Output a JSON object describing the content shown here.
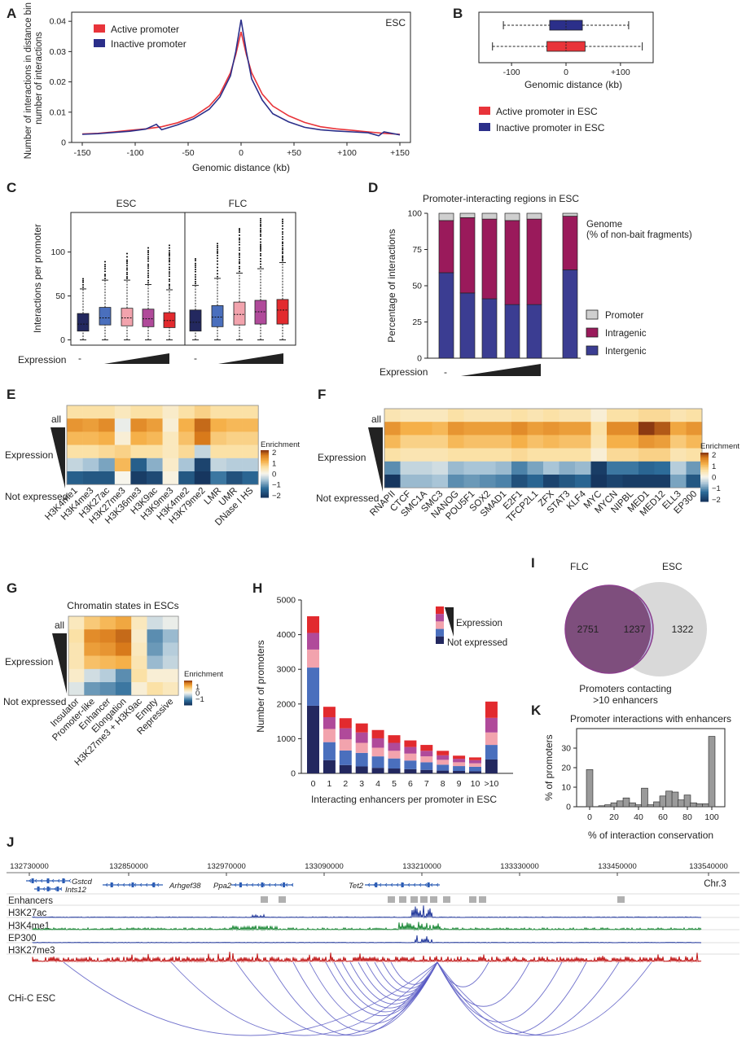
{
  "panel_labels": {
    "A": "A",
    "B": "B",
    "C": "C",
    "D": "D",
    "E": "E",
    "F": "F",
    "G": "G",
    "H": "H",
    "I": "I",
    "J": "J",
    "K": "K"
  },
  "colors": {
    "active": "#e8343a",
    "inactive": "#2b2f8a",
    "promoter": "#cfcfcf",
    "intragenic": "#9a1a5b",
    "intergenic": "#3b3d92"
  },
  "chart_data": [
    {
      "panel": "A",
      "type": "line",
      "corner_label": "ESC",
      "xlabel": "Genomic distance (kb)",
      "ylabel_lines": [
        "Number of interactions in distance bin /",
        "number of interactions"
      ],
      "x_ticks": [
        "-150",
        "-100",
        "-50",
        "0",
        "+50",
        "+100",
        "+150"
      ],
      "y_ticks": [
        "0",
        "0.01",
        "0.02",
        "0.03",
        "0.04"
      ],
      "xlim": [
        -160,
        160
      ],
      "ylim": [
        0,
        0.043
      ],
      "series": [
        {
          "name": "Active promoter",
          "color": "#e8343a",
          "x": [
            -150,
            -135,
            -120,
            -105,
            -90,
            -75,
            -60,
            -45,
            -30,
            -20,
            -10,
            -5,
            0,
            5,
            10,
            20,
            30,
            45,
            60,
            75,
            90,
            105,
            120,
            135,
            150
          ],
          "y": [
            0.0028,
            0.003,
            0.0035,
            0.004,
            0.0045,
            0.0052,
            0.0065,
            0.0085,
            0.012,
            0.016,
            0.023,
            0.029,
            0.0365,
            0.029,
            0.023,
            0.016,
            0.012,
            0.0088,
            0.0066,
            0.0052,
            0.0045,
            0.004,
            0.0035,
            0.003,
            0.0027
          ]
        },
        {
          "name": "Inactive promoter",
          "color": "#2b2f8a",
          "x": [
            -150,
            -135,
            -120,
            -105,
            -90,
            -80,
            -75,
            -60,
            -45,
            -30,
            -20,
            -10,
            -5,
            0,
            5,
            10,
            20,
            30,
            45,
            60,
            75,
            90,
            105,
            120,
            130,
            135,
            150
          ],
          "y": [
            0.0027,
            0.0029,
            0.0033,
            0.0037,
            0.0044,
            0.006,
            0.0042,
            0.0058,
            0.0078,
            0.011,
            0.015,
            0.022,
            0.03,
            0.0405,
            0.03,
            0.021,
            0.014,
            0.0095,
            0.0068,
            0.005,
            0.0042,
            0.0038,
            0.0035,
            0.0032,
            0.0022,
            0.0035,
            0.0025
          ]
        }
      ]
    },
    {
      "panel": "B",
      "type": "box",
      "orientation": "horizontal",
      "xlabel": "Genomic distance (kb)",
      "x_ticks": [
        "-100",
        "0",
        "+100"
      ],
      "xlim": [
        -160,
        160
      ],
      "series": [
        {
          "name": "Active promoter in ESC",
          "color": "#e8343a",
          "whisker_low": -135,
          "q1": -35,
          "median": 0,
          "q3": 35,
          "whisker_high": 140
        },
        {
          "name": "Inactive promoter in ESC",
          "color": "#2b2f8a",
          "whisker_low": -115,
          "q1": -30,
          "median": 0,
          "q3": 30,
          "whisker_high": 115
        }
      ],
      "legend": [
        "Active promoter in ESC",
        "Inactive promoter in ESC"
      ]
    },
    {
      "panel": "C",
      "type": "box",
      "ylabel": "Interactions per promoter",
      "y_ticks": [
        "0",
        "50",
        "100"
      ],
      "ylim": [
        -6,
        145
      ],
      "groups": [
        "ESC",
        "FLC"
      ],
      "expression_label": "Expression",
      "expression_minus": "-",
      "colors": [
        "#23285f",
        "#4a6fbd",
        "#f2a3ad",
        "#b04a9a",
        "#e22a2e"
      ],
      "series": [
        {
          "group": "ESC",
          "q1": 10,
          "median": 18,
          "q3": 30,
          "whisker_high": 58
        },
        {
          "group": "ESC",
          "q1": 17,
          "median": 25,
          "q3": 37,
          "whisker_high": 68
        },
        {
          "group": "ESC",
          "q1": 16,
          "median": 25,
          "q3": 36,
          "whisker_high": 68
        },
        {
          "group": "ESC",
          "q1": 15,
          "median": 24,
          "q3": 35,
          "whisker_high": 63
        },
        {
          "group": "ESC",
          "q1": 14,
          "median": 22,
          "q3": 31,
          "whisker_high": 57
        },
        {
          "group": "FLC",
          "q1": 10,
          "median": 20,
          "q3": 34,
          "whisker_high": 62
        },
        {
          "group": "FLC",
          "q1": 15,
          "median": 26,
          "q3": 39,
          "whisker_high": 70
        },
        {
          "group": "FLC",
          "q1": 17,
          "median": 29,
          "q3": 43,
          "whisker_high": 76
        },
        {
          "group": "FLC",
          "q1": 18,
          "median": 32,
          "q3": 45,
          "whisker_high": 81
        },
        {
          "group": "FLC",
          "q1": 18,
          "median": 34,
          "q3": 46,
          "whisker_high": 88
        }
      ]
    },
    {
      "panel": "D",
      "type": "bar",
      "stacked": true,
      "title": "Promoter-interacting regions in ESC",
      "ylabel": "Percentage of interactions",
      "y_ticks": [
        "0",
        "25",
        "50",
        "75",
        "100"
      ],
      "ylim": [
        0,
        100
      ],
      "expression_label": "Expression",
      "expression_minus": "-",
      "genome_label": "Genome",
      "genome_sublabel": "(% of non-bait fragments)",
      "legend": [
        "Promoter",
        "Intragenic",
        "Intergenic"
      ],
      "series": [
        {
          "name": "Intergenic",
          "values": [
            59,
            45,
            41,
            37,
            37,
            61
          ]
        },
        {
          "name": "Intragenic",
          "values": [
            36,
            52,
            55,
            58,
            59,
            37
          ]
        },
        {
          "name": "Promoter",
          "values": [
            5,
            3,
            4,
            5,
            4,
            2
          ]
        }
      ]
    },
    {
      "panel": "E",
      "type": "heatmap",
      "row_labels": {
        "all": "all",
        "expression": "Expression",
        "not_expressed": "Not expressed"
      },
      "columns": [
        "H3K4me1",
        "H3K4me3",
        "H3K27ac",
        "H3K27me3",
        "H3K36me3",
        "H3K9ac",
        "H3K9me3",
        "H3K4me2",
        "H3K79me2",
        "LMR",
        "UMR",
        "DNase I HS"
      ],
      "values": [
        [
          0.6,
          0.6,
          0.6,
          0.4,
          0.6,
          0.6,
          0.3,
          0.6,
          0.8,
          0.6,
          0.6,
          0.6
        ],
        [
          1.5,
          1.4,
          1.6,
          -0.1,
          1.6,
          1.4,
          0.2,
          1.2,
          1.9,
          1.2,
          1.1,
          1.1
        ],
        [
          1.1,
          1.1,
          1.2,
          0.2,
          1.2,
          1.1,
          0.4,
          1.0,
          1.8,
          0.9,
          0.8,
          0.8
        ],
        [
          0.6,
          0.6,
          0.7,
          0.8,
          0.6,
          0.6,
          0.4,
          0.7,
          -0.4,
          0.6,
          0.6,
          0.6
        ],
        [
          -0.4,
          -0.6,
          -0.9,
          1.1,
          -1.6,
          -0.8,
          0.3,
          -0.6,
          -2.0,
          -0.4,
          -0.5,
          -0.5
        ],
        [
          -1.6,
          -1.7,
          -1.7,
          0.0,
          -2.1,
          -1.9,
          0.1,
          -1.7,
          -2.2,
          -1.3,
          -1.8,
          -1.5
        ]
      ],
      "colorbar": {
        "title": "Enrichment",
        "ticks": [
          "2",
          "1",
          "0",
          "−1",
          "−2"
        ]
      }
    },
    {
      "panel": "F",
      "type": "heatmap",
      "row_labels": {
        "all": "all",
        "expression": "Expression",
        "not_expressed": "Not expressed"
      },
      "columns": [
        "RNAPII",
        "CTCF",
        "SMC1A",
        "SMC3",
        "NANOG",
        "POU5F1",
        "SOX2",
        "SMAD1",
        "E2F1",
        "TFCP2L1",
        "ZFX",
        "STAT3",
        "KLF4",
        "MYC",
        "MYCN",
        "NIPBL",
        "MED1",
        "MED12",
        "ELL3",
        "EP300"
      ],
      "values": [
        [
          0.5,
          0.4,
          0.4,
          0.4,
          0.6,
          0.5,
          0.5,
          0.5,
          0.6,
          0.5,
          0.6,
          0.5,
          0.5,
          0.2,
          0.6,
          0.6,
          0.7,
          0.7,
          0.5,
          0.6
        ],
        [
          1.5,
          1.2,
          1.2,
          1.1,
          1.5,
          1.4,
          1.4,
          1.4,
          1.6,
          1.4,
          1.5,
          1.4,
          1.4,
          0.6,
          1.6,
          1.6,
          2.2,
          2.0,
          1.3,
          1.5
        ],
        [
          1.1,
          0.8,
          0.8,
          0.8,
          1.1,
          1.0,
          1.0,
          1.0,
          1.2,
          1.0,
          1.1,
          1.0,
          1.0,
          0.5,
          1.2,
          1.2,
          1.5,
          1.4,
          0.9,
          1.1
        ],
        [
          0.6,
          0.5,
          0.5,
          0.5,
          0.6,
          0.6,
          0.6,
          0.6,
          0.7,
          0.6,
          0.6,
          0.6,
          0.6,
          0.2,
          0.7,
          0.7,
          0.8,
          0.8,
          0.5,
          0.6
        ],
        [
          -1.1,
          -0.4,
          -0.4,
          -0.3,
          -0.7,
          -0.6,
          -0.6,
          -0.7,
          -1.2,
          -0.9,
          -0.6,
          -0.8,
          -0.7,
          -2.1,
          -1.3,
          -1.3,
          -1.5,
          -1.4,
          -0.5,
          -1.0
        ],
        [
          -2.6,
          -0.7,
          -0.7,
          -0.6,
          -1.1,
          -1.0,
          -1.1,
          -1.2,
          -1.8,
          -1.5,
          -2.0,
          -1.7,
          -1.5,
          -2.4,
          -2.0,
          -2.1,
          -2.1,
          -2.1,
          -0.9,
          -1.7
        ]
      ],
      "colorbar": {
        "title": "Enrichment",
        "ticks": [
          "2",
          "1",
          "0",
          "−1",
          "−2"
        ]
      }
    },
    {
      "panel": "G",
      "type": "heatmap",
      "title": "Chromatin states in ESCs",
      "row_labels": {
        "all": "all",
        "expression": "Expression",
        "not_expressed": "Not expressed"
      },
      "columns": [
        "Insulator",
        "Promoter-like",
        "Enhancer",
        "Elongation",
        "H3K27me3 + H3K9ac",
        "Empty",
        "Repressive"
      ],
      "values": [
        [
          0.4,
          0.9,
          1.1,
          1.3,
          0.4,
          -0.3,
          -0.1
        ],
        [
          0.6,
          1.6,
          1.7,
          1.9,
          0.3,
          -1.1,
          -0.7
        ],
        [
          0.5,
          1.4,
          1.5,
          1.8,
          0.4,
          -1.0,
          -0.5
        ],
        [
          0.5,
          1.0,
          1.1,
          1.2,
          0.5,
          -0.7,
          -0.4
        ],
        [
          0.3,
          -0.3,
          -0.5,
          -1.1,
          0.6,
          0.2,
          0.2
        ],
        [
          -0.2,
          -1.0,
          -1.1,
          -1.3,
          0.2,
          0.6,
          0.4
        ]
      ],
      "colorbar": {
        "title": "Enrichment",
        "ticks": [
          "1",
          "0",
          "−1"
        ]
      }
    },
    {
      "panel": "H",
      "type": "bar",
      "stacked": true,
      "xlabel": "Interacting enhancers per promoter in ESC",
      "ylabel": "Number of promoters",
      "categories": [
        "0",
        "1",
        "2",
        "3",
        "4",
        "5",
        "6",
        "7",
        "8",
        "9",
        "10",
        ">10"
      ],
      "y_ticks": [
        "0",
        "1000",
        "2000",
        "3000",
        "4000",
        "5000"
      ],
      "ylim": [
        0,
        5000
      ],
      "legend_expression": "Expression",
      "legend_not_expressed": "Not expressed",
      "colors": [
        "#23285f",
        "#4a6fbd",
        "#f2a3ad",
        "#b04a9a",
        "#e22a2e"
      ],
      "series": [
        {
          "values": [
            1950,
            380,
            240,
            200,
            160,
            140,
            120,
            100,
            80,
            70,
            60,
            400
          ]
        },
        {
          "values": [
            1100,
            520,
            420,
            390,
            330,
            290,
            250,
            220,
            170,
            140,
            130,
            420
          ]
        },
        {
          "values": [
            520,
            380,
            320,
            290,
            250,
            220,
            200,
            170,
            140,
            110,
            100,
            360
          ]
        },
        {
          "values": [
            480,
            340,
            320,
            300,
            270,
            230,
            190,
            160,
            130,
            100,
            90,
            420
          ]
        },
        {
          "values": [
            480,
            300,
            290,
            260,
            240,
            220,
            190,
            170,
            130,
            90,
            80,
            470
          ]
        }
      ]
    },
    {
      "panel": "I",
      "type": "venn",
      "sets": [
        {
          "name": "FLC",
          "only": "2751"
        },
        {
          "name": "ESC",
          "only": "1322"
        }
      ],
      "overlap": "1237",
      "caption_lines": [
        "Promoters contacting",
        ">10 enhancers"
      ]
    },
    {
      "panel": "K",
      "type": "bar",
      "title": "Promoter interactions with enhancers",
      "xlabel": "% of interaction conservation",
      "ylabel": "% of promoters",
      "x_ticks": [
        "0",
        "20",
        "40",
        "60",
        "80",
        "100"
      ],
      "y_ticks": [
        "0",
        "10",
        "20",
        "30"
      ],
      "ylim": [
        0,
        40
      ],
      "categories": [
        0,
        10,
        15,
        20,
        25,
        30,
        35,
        40,
        45,
        50,
        55,
        60,
        65,
        70,
        75,
        80,
        85,
        90,
        95,
        100
      ],
      "values": [
        19,
        0.5,
        1,
        2,
        3,
        4.5,
        2,
        1,
        9.5,
        1,
        2.5,
        5.5,
        8,
        7.5,
        3.5,
        6,
        2,
        1.5,
        1.5,
        36
      ]
    }
  ],
  "genome_track": {
    "coords": [
      "132730000",
      "132850000",
      "132970000",
      "133090000",
      "133210000",
      "133330000",
      "133450000",
      "133540000"
    ],
    "genes": [
      "Gstcd",
      "Ints12",
      "Arhgef38",
      "Ppa2",
      "Tet2"
    ],
    "chromosome": "Chr.3",
    "tracks": [
      "Enhancers",
      "H3K27ac",
      "H3K4me1",
      "EP300",
      "H3K27me3"
    ],
    "chic_label": "CHi-C ESC"
  }
}
